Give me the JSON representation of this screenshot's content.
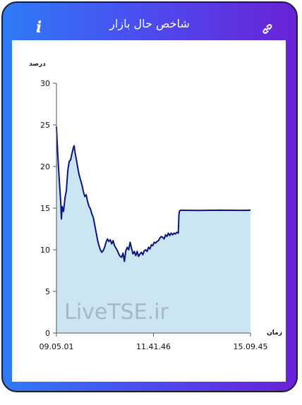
{
  "header": {
    "title": "شاخص حال بازار",
    "info_label": "i",
    "info_icon": "info-icon",
    "link_icon": "link-icon"
  },
  "watermark": "LiveTSE.ir",
  "chart_data": {
    "type": "area",
    "title": "",
    "ylabel": "درصد",
    "xlabel": "زمان",
    "ylim": [
      0,
      30
    ],
    "yticks": [
      "0",
      "5",
      "10",
      "15",
      "20",
      "25",
      "30"
    ],
    "xtick_labels": [
      "09.05.01",
      "11.41.46",
      "15.09.45"
    ],
    "grid": false,
    "line_color": "#0b1483",
    "fill_color": "#cbe6f2",
    "series": [
      {
        "x": [
          0,
          2,
          4,
          6,
          7,
          8,
          10,
          12,
          14,
          16,
          18,
          20,
          22,
          24,
          25,
          26,
          28,
          30,
          32,
          34,
          36,
          38,
          40,
          42,
          44,
          46,
          48,
          50,
          52,
          54,
          56,
          58,
          60,
          62,
          64,
          66,
          68,
          70,
          72,
          74,
          76,
          78,
          80,
          82,
          84,
          86,
          88,
          90,
          92,
          94,
          96,
          98,
          100,
          102,
          104,
          106,
          108,
          110,
          112,
          114,
          116,
          118,
          120,
          122,
          124,
          126,
          128,
          130,
          132,
          134,
          136,
          138,
          140,
          142,
          144,
          146,
          148,
          150,
          152,
          154,
          156,
          158,
          160,
          162,
          164,
          166,
          168,
          170,
          172,
          173,
          174,
          176,
          200,
          230,
          260,
          274
        ],
        "values": [
          24.8,
          21.2,
          18.4,
          15.8,
          13.7,
          15.2,
          14.6,
          16.2,
          17.1,
          19.5,
          20.6,
          20.8,
          21.6,
          22.3,
          22.5,
          21.8,
          20.9,
          19.9,
          19.0,
          18.4,
          17.8,
          17.0,
          16.4,
          16.6,
          15.8,
          15.2,
          14.9,
          14.3,
          13.9,
          13.0,
          12.1,
          11.2,
          10.5,
          10.0,
          9.7,
          9.9,
          10.3,
          10.9,
          11.3,
          11.0,
          11.2,
          10.7,
          11.1,
          10.5,
          10.2,
          9.9,
          9.5,
          9.2,
          9.1,
          9.6,
          8.6,
          9.9,
          10.3,
          10.0,
          10.9,
          10.2,
          9.5,
          9.8,
          9.3,
          9.8,
          9.2,
          9.5,
          9.7,
          9.4,
          9.9,
          10.0,
          9.8,
          10.3,
          10.1,
          10.6,
          10.5,
          10.9,
          10.8,
          11.0,
          11.1,
          11.4,
          11.6,
          11.5,
          11.3,
          11.8,
          11.6,
          12.0,
          11.7,
          12.0,
          11.8,
          12.0,
          11.9,
          12.1,
          12.0,
          14.3,
          14.7,
          14.75,
          14.72,
          14.76,
          14.73,
          14.75
        ]
      }
    ]
  }
}
